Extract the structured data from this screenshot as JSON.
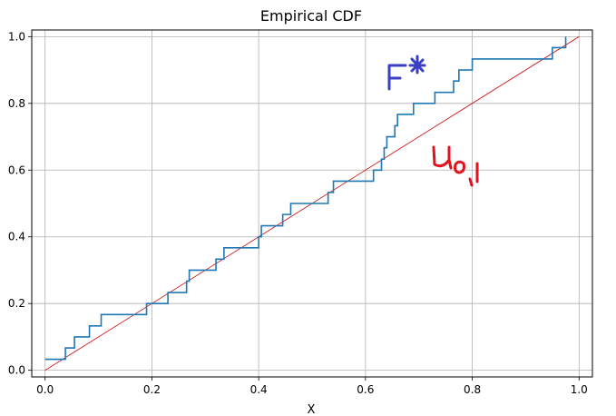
{
  "chart_data": {
    "type": "line",
    "title": "Empirical CDF",
    "xlabel": "X",
    "ylabel": "",
    "xlim": [
      -0.025,
      1.025
    ],
    "ylim": [
      -0.02,
      1.02
    ],
    "xticks": [
      0.0,
      0.2,
      0.4,
      0.6,
      0.8,
      1.0
    ],
    "yticks": [
      0.0,
      0.2,
      0.4,
      0.6,
      0.8,
      1.0
    ],
    "xtick_labels": [
      "0.0",
      "0.2",
      "0.4",
      "0.6",
      "0.8",
      "1.0"
    ],
    "ytick_labels": [
      "0.0",
      "0.2",
      "0.4",
      "0.6",
      "0.8",
      "1.0"
    ],
    "grid": true,
    "series": [
      {
        "color": "#1f77b4",
        "drawstyle": "steps-post",
        "x": [
          0.0,
          0.038,
          0.055,
          0.083,
          0.105,
          0.19,
          0.22,
          0.23,
          0.265,
          0.27,
          0.32,
          0.335,
          0.4,
          0.405,
          0.445,
          0.46,
          0.53,
          0.54,
          0.615,
          0.63,
          0.635,
          0.64,
          0.655,
          0.66,
          0.69,
          0.73,
          0.765,
          0.775,
          0.8,
          0.95,
          0.97,
          0.975
        ],
        "y": [
          0.033,
          0.067,
          0.1,
          0.133,
          0.167,
          0.2,
          0.2,
          0.233,
          0.267,
          0.3,
          0.333,
          0.367,
          0.4,
          0.433,
          0.467,
          0.5,
          0.533,
          0.567,
          0.6,
          0.633,
          0.667,
          0.7,
          0.733,
          0.767,
          0.8,
          0.833,
          0.867,
          0.9,
          0.933,
          0.967,
          0.967,
          1.0
        ]
      },
      {
        "color": "#cc0000",
        "x": [
          0.0,
          1.0
        ],
        "y": [
          0.0,
          1.0
        ]
      }
    ],
    "annotations": [
      {
        "text": "F*",
        "color": "#3a3fc4",
        "handwritten": true
      },
      {
        "text": "U0,1",
        "color": "#e0141e",
        "handwritten": true
      }
    ]
  }
}
